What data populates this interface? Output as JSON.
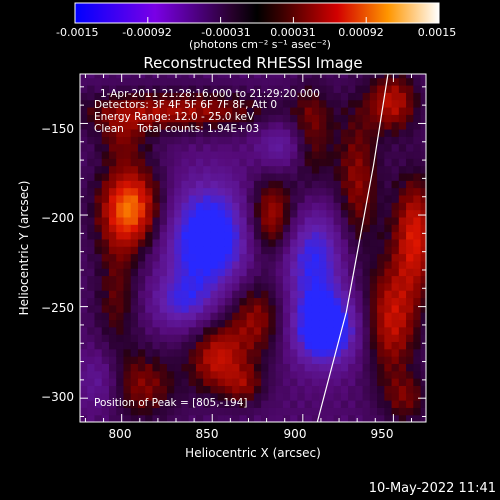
{
  "colorbar": {
    "tick_labels": [
      "-0.0015",
      "-0.00092",
      "-0.00031",
      "0.00031",
      "0.00092",
      "0.0015"
    ],
    "units": "(photons cm⁻² s⁻¹ asec⁻²)"
  },
  "title": "Reconstructed RHESSI Image",
  "info": {
    "time_range": "1-Apr-2011 21:28:16.000 to 21:29:20.000",
    "detectors": "Detectors: 3F 4F 5F 6F 7F 8F, Att 0",
    "energy": "Energy Range: 12.0 - 25.0 keV",
    "clean": "Clean    Total counts: 1.94E+03",
    "peak": "Position of Peak = [805,-194]"
  },
  "axes": {
    "xlabel": "Heliocentric X (arcsec)",
    "ylabel": "Heliocentric Y (arcsec)",
    "xlim": [
      777,
      968
    ],
    "ylim": [
      -313,
      -123
    ],
    "xticks": [
      800,
      850,
      900,
      950
    ],
    "xtick_labels": [
      "800",
      "850",
      "900",
      "950"
    ],
    "yticks": [
      -150,
      -200,
      -250,
      -300
    ],
    "ytick_labels": [
      "−150",
      "−200",
      "−250",
      "−300"
    ]
  },
  "footer_date": "10-May-2022 11:41",
  "image_sources": [
    {
      "x": 805,
      "y": -196,
      "amp": 1.0,
      "sx": 13,
      "sy": 17
    },
    {
      "x": 800,
      "y": -158,
      "amp": 0.35,
      "sx": 10,
      "sy": 10
    },
    {
      "x": 797,
      "y": -245,
      "amp": 0.4,
      "sx": 9,
      "sy": 22
    },
    {
      "x": 812,
      "y": -293,
      "amp": 0.5,
      "sx": 14,
      "sy": 14
    },
    {
      "x": 830,
      "y": -143,
      "amp": 0.6,
      "sx": 40,
      "sy": 8
    },
    {
      "x": 883,
      "y": -202,
      "amp": 0.8,
      "sx": 10,
      "sy": 17
    },
    {
      "x": 875,
      "y": -255,
      "amp": 0.6,
      "sx": 13,
      "sy": 17
    },
    {
      "x": 852,
      "y": -278,
      "amp": 0.65,
      "sx": 11,
      "sy": 14
    },
    {
      "x": 868,
      "y": -293,
      "amp": 0.4,
      "sx": 8,
      "sy": 8
    },
    {
      "x": 905,
      "y": -157,
      "amp": 0.45,
      "sx": 8,
      "sy": 22
    },
    {
      "x": 930,
      "y": -183,
      "amp": 0.55,
      "sx": 9,
      "sy": 30
    },
    {
      "x": 950,
      "y": -138,
      "amp": 0.65,
      "sx": 10,
      "sy": 12
    },
    {
      "x": 962,
      "y": -210,
      "amp": 0.75,
      "sx": 9,
      "sy": 24
    },
    {
      "x": 948,
      "y": -258,
      "amp": 0.7,
      "sx": 11,
      "sy": 22
    },
    {
      "x": 957,
      "y": -300,
      "amp": 0.4,
      "sx": 10,
      "sy": 10
    },
    {
      "x": 848,
      "y": -213,
      "amp": -0.95,
      "sx": 18,
      "sy": 22
    },
    {
      "x": 905,
      "y": -222,
      "amp": -0.7,
      "sx": 14,
      "sy": 20
    },
    {
      "x": 912,
      "y": -262,
      "amp": -1.0,
      "sx": 14,
      "sy": 14
    },
    {
      "x": 833,
      "y": -248,
      "amp": -0.45,
      "sx": 12,
      "sy": 10
    },
    {
      "x": 888,
      "y": -162,
      "amp": -0.4,
      "sx": 10,
      "sy": 10
    },
    {
      "x": 788,
      "y": -290,
      "amp": -0.35,
      "sx": 8,
      "sy": 12
    }
  ],
  "limb_curve": [
    [
      947,
      -123
    ],
    [
      939,
      -173
    ],
    [
      924,
      -253
    ],
    [
      908,
      -313
    ]
  ]
}
